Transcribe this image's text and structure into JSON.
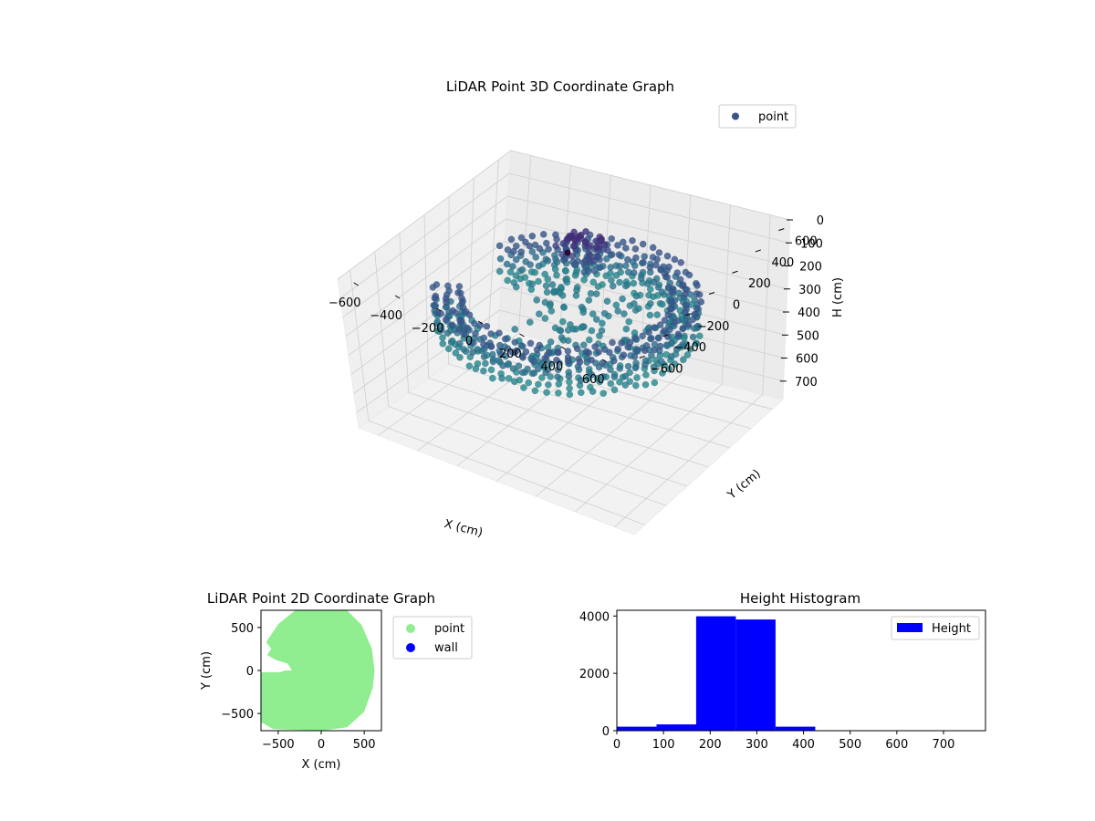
{
  "chart_data": [
    {
      "type": "scatter3d",
      "title": "LiDAR Point 3D Coordinate Graph",
      "xlabel": "X (cm)",
      "ylabel": "Y (cm)",
      "zlabel": "H (cm)",
      "xlim": [
        -700,
        700
      ],
      "ylim": [
        -700,
        700
      ],
      "zlim": [
        0,
        780
      ],
      "z_inverted": true,
      "xticks": [
        "−600",
        "−400",
        "−200",
        "0",
        "200",
        "400",
        "600"
      ],
      "yticks": [
        "−600",
        "−400",
        "−200",
        "0",
        "200",
        "400",
        "600"
      ],
      "zticks": [
        "0",
        "100",
        "200",
        "300",
        "400",
        "500",
        "600",
        "700"
      ],
      "grid": true,
      "legend": {
        "position": "top-right",
        "entries": [
          {
            "name": "point",
            "color": "#3b528b"
          }
        ]
      },
      "colormap": "viridis",
      "shape": {
        "outer_radius_cm": 620,
        "inner_radius_cm": 460,
        "typical_height_cm": [
          200,
          340
        ],
        "opening_angle_deg": [
          150,
          200
        ],
        "cluster_center_cm": [
          -120,
          330,
          160
        ]
      }
    },
    {
      "type": "scatter",
      "title": "LiDAR Point 2D Coordinate Graph",
      "xlabel": "X (cm)",
      "ylabel": "Y (cm)",
      "xlim": [
        -700,
        700
      ],
      "ylim": [
        -700,
        700
      ],
      "xticks": [
        "−500",
        "0",
        "500"
      ],
      "yticks": [
        "−500",
        "0",
        "500"
      ],
      "legend": {
        "position": "outside-right",
        "entries": [
          {
            "name": "point",
            "color": "#90ee90"
          },
          {
            "name": "wall",
            "color": "#0000ff"
          }
        ]
      },
      "outline_cm": [
        [
          -700,
          -20
        ],
        [
          -700,
          -600
        ],
        [
          -560,
          -680
        ],
        [
          -300,
          -690
        ],
        [
          0,
          -700
        ],
        [
          300,
          -660
        ],
        [
          500,
          -480
        ],
        [
          600,
          -200
        ],
        [
          620,
          0
        ],
        [
          590,
          250
        ],
        [
          470,
          530
        ],
        [
          300,
          700
        ],
        [
          -300,
          700
        ],
        [
          -500,
          540
        ],
        [
          -640,
          330
        ],
        [
          -580,
          250
        ],
        [
          -630,
          180
        ],
        [
          -520,
          120
        ],
        [
          -390,
          80
        ],
        [
          -340,
          0
        ],
        [
          -420,
          0
        ],
        [
          -480,
          -20
        ]
      ]
    },
    {
      "type": "histogram",
      "title": "Height Histogram",
      "xlabel": "",
      "ylabel": "",
      "xlim": [
        0,
        790
      ],
      "ylim": [
        0,
        4200
      ],
      "xticks": [
        0,
        100,
        200,
        300,
        400,
        500,
        600,
        700
      ],
      "yticks": [
        0,
        2000,
        4000
      ],
      "bin_width": 85,
      "bins": [
        {
          "x0": 0,
          "count": 140
        },
        {
          "x0": 85,
          "count": 220
        },
        {
          "x0": 170,
          "count": 3990
        },
        {
          "x0": 255,
          "count": 3880
        },
        {
          "x0": 340,
          "count": 140
        },
        {
          "x0": 425,
          "count": 15
        },
        {
          "x0": 510,
          "count": 10
        },
        {
          "x0": 595,
          "count": 8
        },
        {
          "x0": 680,
          "count": 5
        }
      ],
      "color": "#0000ff",
      "legend": {
        "position": "top-right",
        "entries": [
          {
            "name": "Height",
            "color": "#0000ff"
          }
        ]
      }
    }
  ]
}
